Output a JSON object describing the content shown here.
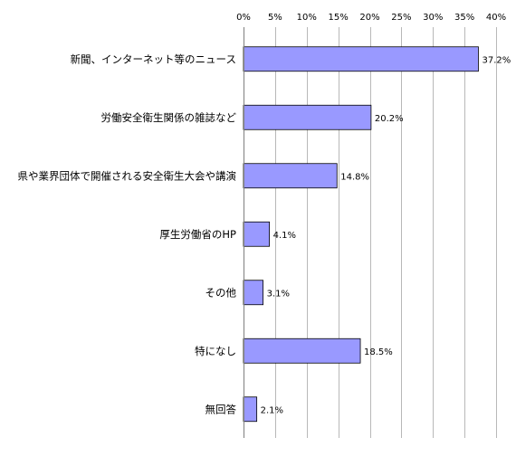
{
  "colors": {
    "bar_fill": "#9999ff",
    "bar_stroke": "#000000",
    "grid": "#b8b8b8",
    "text": "#000000"
  },
  "chart_data": {
    "type": "bar",
    "orientation": "horizontal",
    "title": "",
    "xlabel": "",
    "ylabel": "",
    "xlim": [
      0,
      40
    ],
    "x_ticks": [
      "0%",
      "5%",
      "10%",
      "15%",
      "20%",
      "25%",
      "30%",
      "35%",
      "40%"
    ],
    "x_tick_values": [
      0,
      5,
      10,
      15,
      20,
      25,
      30,
      35,
      40
    ],
    "x_axis_position": "top",
    "grid": true,
    "categories": [
      "新聞、インターネット等のニュース",
      "労働安全衛生関係の雑誌など",
      "県や業界団体で開催される安全衛生大会や講演",
      "厚生労働省のHP",
      "その他",
      "特になし",
      "無回答"
    ],
    "values": [
      37.2,
      20.2,
      14.8,
      4.1,
      3.1,
      18.5,
      2.1
    ],
    "value_labels": [
      "37.2%",
      "20.2%",
      "14.8%",
      "4.1%",
      "3.1%",
      "18.5%",
      "2.1%"
    ]
  }
}
